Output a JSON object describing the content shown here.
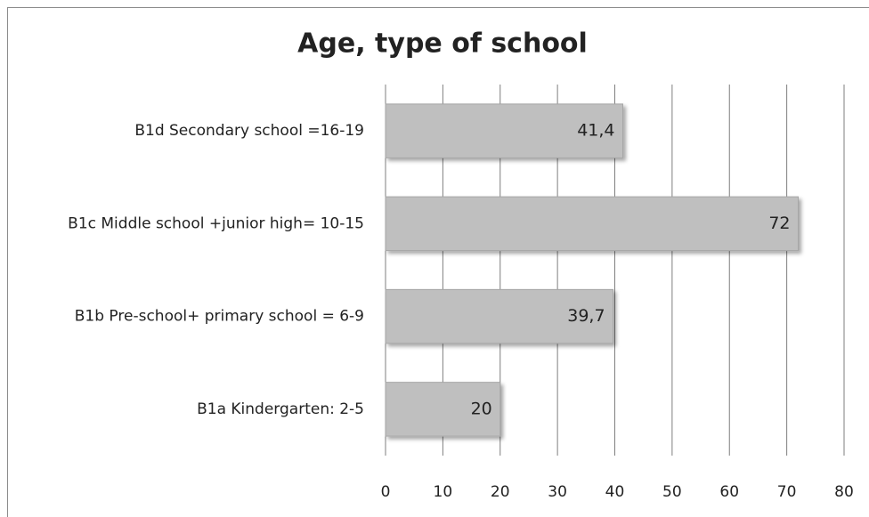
{
  "chart_data": {
    "type": "bar",
    "orientation": "horizontal",
    "title": "Age, type of school",
    "categories": [
      "B1d Secondary school =16-19",
      "B1c Middle school +junior high= 10-15",
      "B1b Pre-school+ primary school = 6-9",
      "B1a Kindergarten: 2-5"
    ],
    "values": [
      41.4,
      72,
      39.7,
      20
    ],
    "value_labels": [
      "41,4",
      "72",
      "39,7",
      "20"
    ],
    "color": "#bfbfbf",
    "xlim": [
      0,
      80
    ],
    "xticks": [
      0,
      10,
      20,
      30,
      40,
      50,
      60,
      70,
      80
    ],
    "grid": true
  }
}
